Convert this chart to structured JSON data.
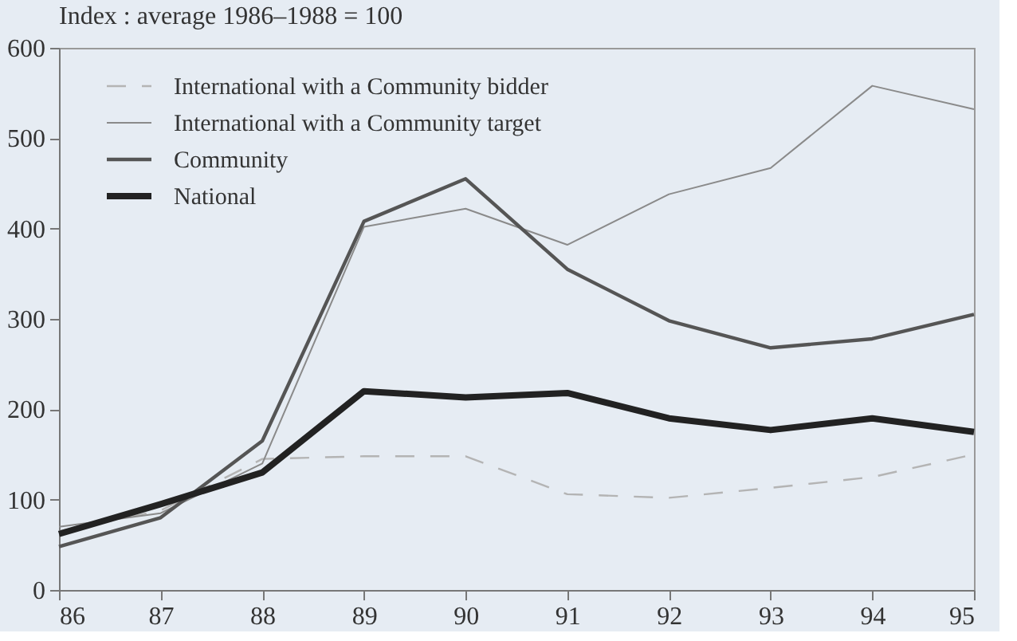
{
  "chart_data": {
    "type": "line",
    "ylabel": "Index : average 1986–1988 = 100",
    "categories": [
      "86",
      "87",
      "88",
      "89",
      "90",
      "91",
      "92",
      "93",
      "94",
      "95"
    ],
    "series": [
      {
        "name": "International with a Community bidder",
        "color": "#b4b4b4",
        "line_style": "dashed",
        "values": [
          65,
          88,
          145,
          148,
          148,
          106,
          102,
          113,
          125,
          150
        ]
      },
      {
        "name": "International with a Community target",
        "color": "#8a8a8a",
        "line_style": "solid",
        "values": [
          70,
          85,
          140,
          402,
          422,
          382,
          438,
          467,
          558,
          532
        ]
      },
      {
        "name": "Community",
        "color": "#555555",
        "line_style": "solid",
        "values": [
          48,
          80,
          165,
          408,
          455,
          355,
          298,
          268,
          278,
          305
        ]
      },
      {
        "name": "National",
        "color": "#222222",
        "line_style": "solid",
        "values": [
          62,
          95,
          130,
          220,
          213,
          218,
          190,
          177,
          190,
          175
        ]
      }
    ],
    "ylim": [
      0,
      600
    ],
    "yticks": [
      0,
      100,
      200,
      300,
      400,
      500,
      600
    ],
    "grid": false,
    "legend": "top left",
    "marker": "none"
  }
}
